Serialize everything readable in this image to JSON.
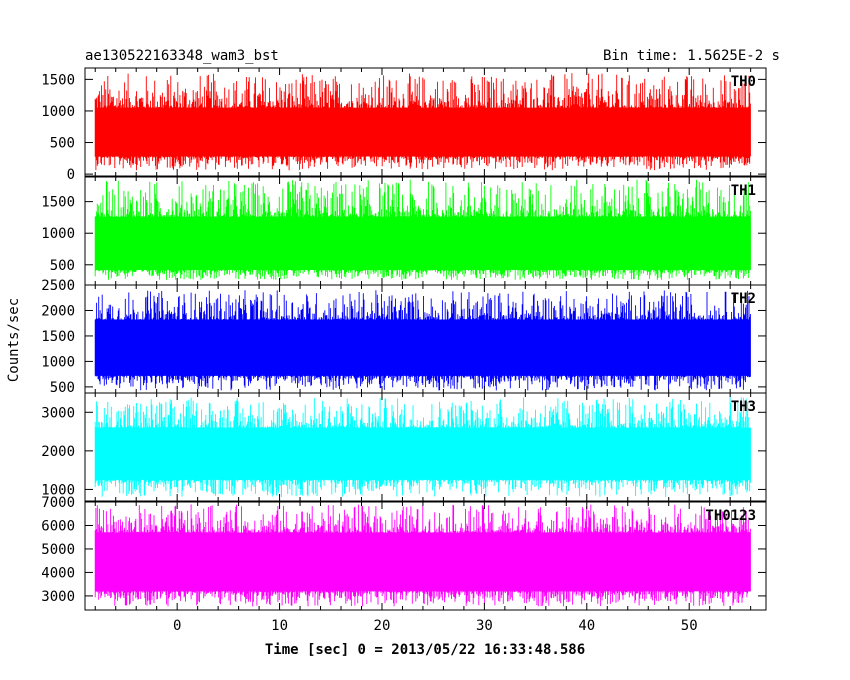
{
  "chart_data": {
    "type": "line",
    "title": "ae130522163348_wam3_bst",
    "subtitle": "Bin time: 1.5625E-2 s",
    "xlabel": "Time [sec] 0 = 2013/05/22 16:33:48.586",
    "ylabel": "Counts/sec",
    "xlim": [
      -9,
      57.5
    ],
    "data_xrange": [
      -8,
      56
    ],
    "x_ticks": [
      0,
      10,
      20,
      30,
      40,
      50
    ],
    "grid": false,
    "panels": [
      {
        "name": "TH0",
        "color": "#ff0000",
        "ylim": [
          -30,
          1680
        ],
        "y_ticks": [
          0,
          500,
          1000,
          1500
        ],
        "band": [
          280,
          1050
        ],
        "spike_max": 1600,
        "dip_min": 60
      },
      {
        "name": "TH1",
        "color": "#00ff00",
        "ylim": [
          180,
          1890
        ],
        "y_ticks": [
          500,
          1000,
          1500
        ],
        "band": [
          420,
          1260
        ],
        "spike_max": 1850,
        "dip_min": 260
      },
      {
        "name": "TH2",
        "color": "#0000ff",
        "ylim": [
          380,
          2500
        ],
        "y_ticks": [
          500,
          1000,
          1500,
          2000,
          2500
        ],
        "band": [
          720,
          1820
        ],
        "spike_max": 2400,
        "dip_min": 430
      },
      {
        "name": "TH3",
        "color": "#00ffff",
        "ylim": [
          700,
          3500
        ],
        "y_ticks": [
          1000,
          2000,
          3000
        ],
        "band": [
          1250,
          2600
        ],
        "spike_max": 3400,
        "dip_min": 800
      },
      {
        "name": "TH0123",
        "color": "#ff00ff",
        "ylim": [
          2400,
          7000
        ],
        "y_ticks": [
          3000,
          4000,
          5000,
          6000,
          7000
        ],
        "band": [
          3200,
          5700
        ],
        "spike_max": 6900,
        "dip_min": 2550
      }
    ]
  }
}
